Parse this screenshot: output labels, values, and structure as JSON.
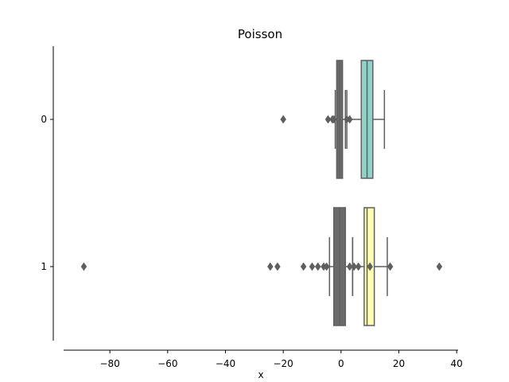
{
  "chart_data": {
    "type": "boxplot",
    "orientation": "horizontal",
    "title": "Poisson",
    "xlabel": "x",
    "ylabel": "",
    "xlim": [
      -96,
      40.5
    ],
    "x_ticks": [
      -80,
      -60,
      -40,
      -20,
      0,
      20,
      40
    ],
    "x_tick_labels": [
      "−80",
      "−60",
      "−40",
      "−20",
      "0",
      "20",
      "40"
    ],
    "categories": [
      "0",
      "1"
    ],
    "grid": false,
    "series": [
      {
        "category": "0",
        "boxes": [
          {
            "color": "#8dd3c7",
            "q1": 7,
            "median": 9,
            "q3": 11,
            "whisker_low": 2,
            "whisker_high": 15,
            "outliers": []
          },
          {
            "color": "#6b6b6b",
            "q1": -1.5,
            "median": -0.5,
            "q3": 0.5,
            "whisker_low": -2,
            "whisker_high": 1.5,
            "outliers": [
              -20,
              -4.5,
              -3,
              -2.5,
              2,
              3
            ]
          }
        ]
      },
      {
        "category": "1",
        "boxes": [
          {
            "color": "#ffffb3",
            "q1": 8,
            "median": 9,
            "q3": 11.5,
            "whisker_low": 4,
            "whisker_high": 16,
            "outliers": [
              10,
              17,
              34
            ]
          },
          {
            "color": "#6b6b6b",
            "q1": -2.5,
            "median": -0.5,
            "q3": 1.5,
            "whisker_low": -4,
            "whisker_high": 4,
            "outliers": [
              -89,
              -24.5,
              -22,
              -13,
              -10,
              -8,
              -6,
              -5,
              3,
              4.5,
              6
            ]
          }
        ]
      }
    ]
  }
}
